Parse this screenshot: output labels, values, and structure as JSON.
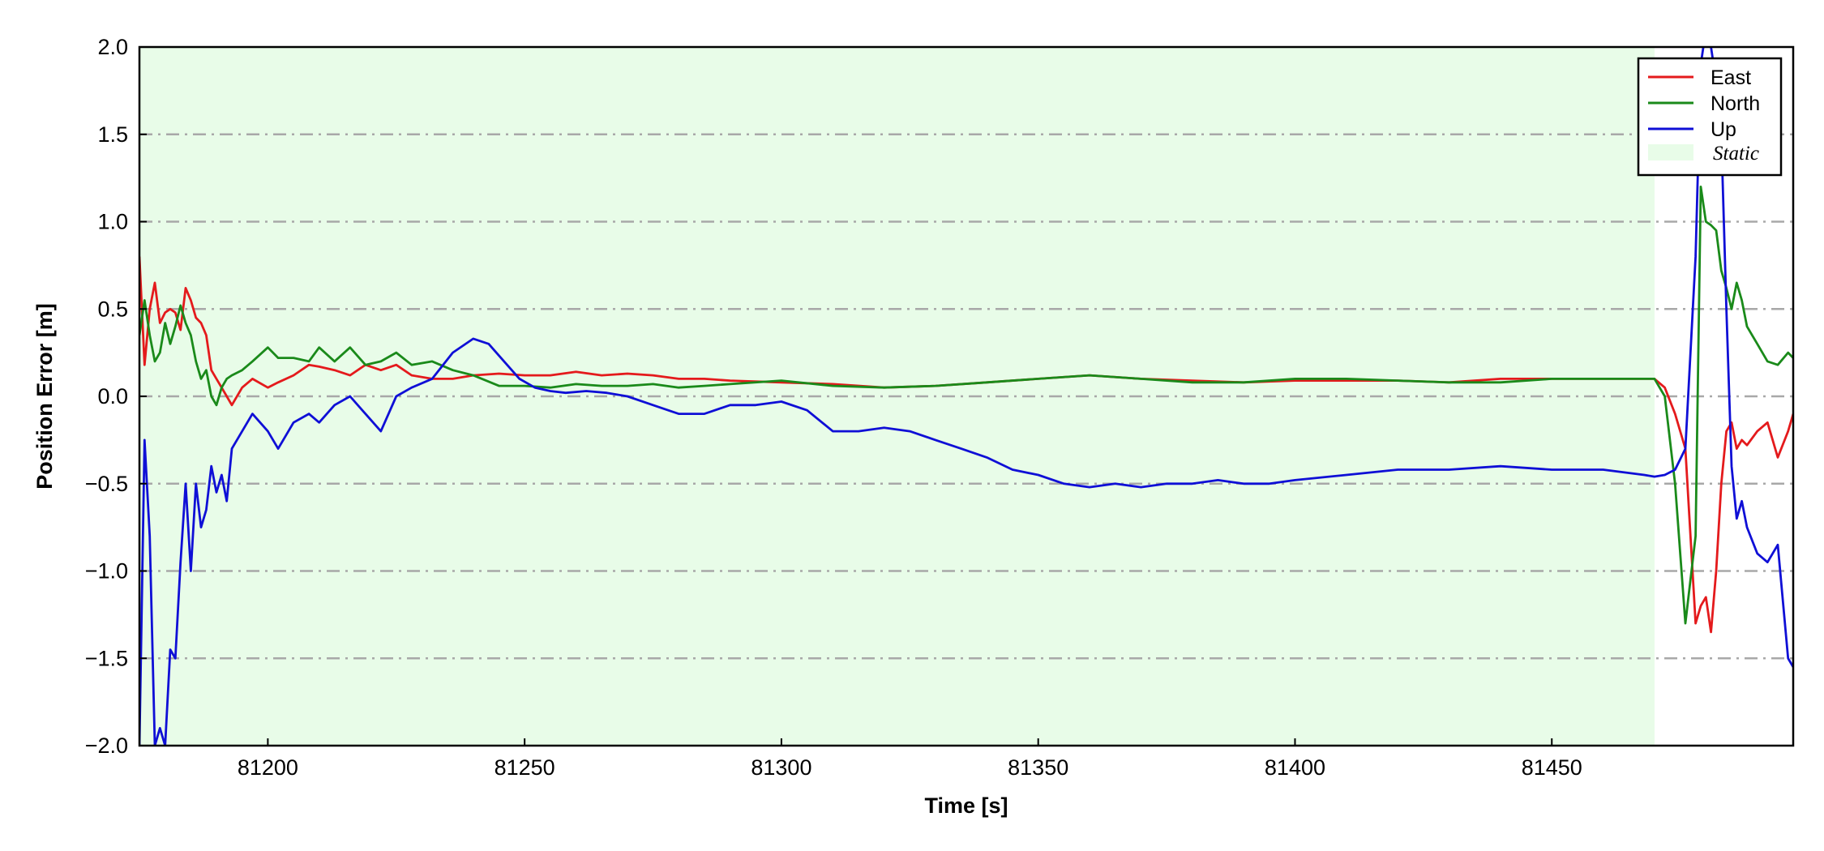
{
  "chart_data": {
    "type": "line",
    "xlabel": "Time [s]",
    "ylabel": "Position Error [m]",
    "xlim": [
      81175,
      81497
    ],
    "ylim": [
      -2.0,
      2.0
    ],
    "x_ticks": [
      81200,
      81250,
      81300,
      81350,
      81400,
      81450
    ],
    "y_ticks": [
      -2.0,
      -1.5,
      -1.0,
      -0.5,
      0.0,
      0.5,
      1.0,
      1.5,
      2.0
    ],
    "x_tick_labels": [
      "81200",
      "81250",
      "81300",
      "81350",
      "81400",
      "81450"
    ],
    "y_tick_labels": [
      "−2.0",
      "−1.5",
      "−1.0",
      "−0.5",
      "0.0",
      "0.5",
      "1.0",
      "1.5",
      "2.0"
    ],
    "grid": "horizontal dash-dot",
    "legend_position": "top-right",
    "static_region": {
      "label": "Static",
      "x_start": 81175,
      "x_end": 81470,
      "color": "#e8fce8"
    },
    "series": [
      {
        "name": "East",
        "color": "#e41a1c",
        "x": [
          81175,
          81176,
          81177,
          81178,
          81179,
          81180,
          81181,
          81182,
          81183,
          81184,
          81185,
          81186,
          81187,
          81188,
          81189,
          81190,
          81191,
          81192,
          81193,
          81195,
          81197,
          81200,
          81202,
          81205,
          81208,
          81210,
          81213,
          81216,
          81219,
          81222,
          81225,
          81228,
          81232,
          81236,
          81240,
          81245,
          81250,
          81255,
          81260,
          81265,
          81270,
          81275,
          81280,
          81285,
          81290,
          81300,
          81310,
          81320,
          81330,
          81340,
          81350,
          81360,
          81370,
          81380,
          81390,
          81400,
          81410,
          81420,
          81430,
          81440,
          81450,
          81460,
          81468,
          81470,
          81472,
          81474,
          81476,
          81478,
          81479,
          81480,
          81481,
          81482,
          81483,
          81484,
          81485,
          81486,
          81487,
          81488,
          81490,
          81492,
          81494,
          81496,
          81497
        ],
        "y": [
          0.8,
          0.18,
          0.5,
          0.65,
          0.42,
          0.48,
          0.5,
          0.48,
          0.38,
          0.62,
          0.55,
          0.45,
          0.42,
          0.35,
          0.15,
          0.1,
          0.05,
          0.0,
          -0.05,
          0.05,
          0.1,
          0.05,
          0.08,
          0.12,
          0.18,
          0.17,
          0.15,
          0.12,
          0.18,
          0.15,
          0.18,
          0.12,
          0.1,
          0.1,
          0.12,
          0.13,
          0.12,
          0.12,
          0.14,
          0.12,
          0.13,
          0.12,
          0.1,
          0.1,
          0.09,
          0.08,
          0.07,
          0.05,
          0.06,
          0.08,
          0.1,
          0.12,
          0.1,
          0.09,
          0.08,
          0.09,
          0.09,
          0.09,
          0.08,
          0.1,
          0.1,
          0.1,
          0.1,
          0.1,
          0.05,
          -0.1,
          -0.3,
          -1.3,
          -1.2,
          -1.15,
          -1.35,
          -1.0,
          -0.5,
          -0.2,
          -0.15,
          -0.3,
          -0.25,
          -0.28,
          -0.2,
          -0.15,
          -0.35,
          -0.2,
          -0.1
        ]
      },
      {
        "name": "North",
        "color": "#1a8a1a",
        "x": [
          81175,
          81176,
          81177,
          81178,
          81179,
          81180,
          81181,
          81182,
          81183,
          81184,
          81185,
          81186,
          81187,
          81188,
          81189,
          81190,
          81191,
          81192,
          81193,
          81195,
          81197,
          81200,
          81202,
          81205,
          81208,
          81210,
          81213,
          81216,
          81219,
          81222,
          81225,
          81228,
          81232,
          81236,
          81240,
          81245,
          81250,
          81255,
          81260,
          81265,
          81270,
          81275,
          81280,
          81285,
          81290,
          81300,
          81310,
          81320,
          81330,
          81340,
          81350,
          81360,
          81370,
          81380,
          81390,
          81400,
          81410,
          81420,
          81430,
          81440,
          81450,
          81460,
          81468,
          81470,
          81472,
          81474,
          81476,
          81478,
          81479,
          81480,
          81481,
          81482,
          81483,
          81484,
          81485,
          81486,
          81487,
          81488,
          81490,
          81492,
          81494,
          81496,
          81497
        ],
        "y": [
          0.35,
          0.55,
          0.35,
          0.2,
          0.25,
          0.42,
          0.3,
          0.4,
          0.52,
          0.42,
          0.35,
          0.2,
          0.1,
          0.15,
          0.0,
          -0.05,
          0.05,
          0.1,
          0.12,
          0.15,
          0.2,
          0.28,
          0.22,
          0.22,
          0.2,
          0.28,
          0.2,
          0.28,
          0.18,
          0.2,
          0.25,
          0.18,
          0.2,
          0.15,
          0.12,
          0.06,
          0.06,
          0.05,
          0.07,
          0.06,
          0.06,
          0.07,
          0.05,
          0.06,
          0.07,
          0.09,
          0.06,
          0.05,
          0.06,
          0.08,
          0.1,
          0.12,
          0.1,
          0.08,
          0.08,
          0.1,
          0.1,
          0.09,
          0.08,
          0.08,
          0.1,
          0.1,
          0.1,
          0.1,
          0.0,
          -0.5,
          -1.3,
          -0.8,
          1.2,
          1.0,
          0.98,
          0.95,
          0.72,
          0.62,
          0.5,
          0.65,
          0.55,
          0.4,
          0.3,
          0.2,
          0.18,
          0.25,
          0.22
        ]
      },
      {
        "name": "Up",
        "color": "#0f0fd6",
        "x": [
          81175,
          81176,
          81177,
          81178,
          81179,
          81180,
          81181,
          81182,
          81183,
          81184,
          81185,
          81186,
          81187,
          81188,
          81189,
          81190,
          81191,
          81192,
          81193,
          81195,
          81197,
          81200,
          81202,
          81205,
          81208,
          81210,
          81213,
          81216,
          81219,
          81222,
          81225,
          81228,
          81232,
          81236,
          81240,
          81243,
          81246,
          81249,
          81252,
          81255,
          81258,
          81262,
          81266,
          81270,
          81275,
          81280,
          81285,
          81290,
          81295,
          81300,
          81305,
          81310,
          81315,
          81320,
          81325,
          81330,
          81335,
          81340,
          81345,
          81350,
          81355,
          81360,
          81365,
          81370,
          81375,
          81380,
          81385,
          81390,
          81395,
          81400,
          81410,
          81420,
          81430,
          81440,
          81450,
          81460,
          81468,
          81470,
          81472,
          81474,
          81476,
          81478,
          81479,
          81480,
          81481,
          81482,
          81483,
          81484,
          81485,
          81486,
          81487,
          81488,
          81490,
          81492,
          81494,
          81496,
          81497
        ],
        "y": [
          -2.0,
          -0.25,
          -0.8,
          -2.0,
          -1.9,
          -2.0,
          -1.45,
          -1.5,
          -0.95,
          -0.5,
          -1.0,
          -0.5,
          -0.75,
          -0.65,
          -0.4,
          -0.55,
          -0.45,
          -0.6,
          -0.3,
          -0.2,
          -0.1,
          -0.2,
          -0.3,
          -0.15,
          -0.1,
          -0.15,
          -0.05,
          0.0,
          -0.1,
          -0.2,
          0.0,
          0.05,
          0.1,
          0.25,
          0.33,
          0.3,
          0.2,
          0.1,
          0.05,
          0.03,
          0.02,
          0.03,
          0.02,
          0.0,
          -0.05,
          -0.1,
          -0.1,
          -0.05,
          -0.05,
          -0.03,
          -0.08,
          -0.2,
          -0.2,
          -0.18,
          -0.2,
          -0.25,
          -0.3,
          -0.35,
          -0.42,
          -0.45,
          -0.5,
          -0.52,
          -0.5,
          -0.52,
          -0.5,
          -0.5,
          -0.48,
          -0.5,
          -0.5,
          -0.48,
          -0.45,
          -0.42,
          -0.42,
          -0.4,
          -0.42,
          -0.42,
          -0.45,
          -0.46,
          -0.45,
          -0.42,
          -0.3,
          0.8,
          1.9,
          2.1,
          2.0,
          1.8,
          1.5,
          0.5,
          -0.4,
          -0.7,
          -0.6,
          -0.75,
          -0.9,
          -0.95,
          -0.85,
          -1.5,
          -1.55
        ]
      }
    ]
  }
}
